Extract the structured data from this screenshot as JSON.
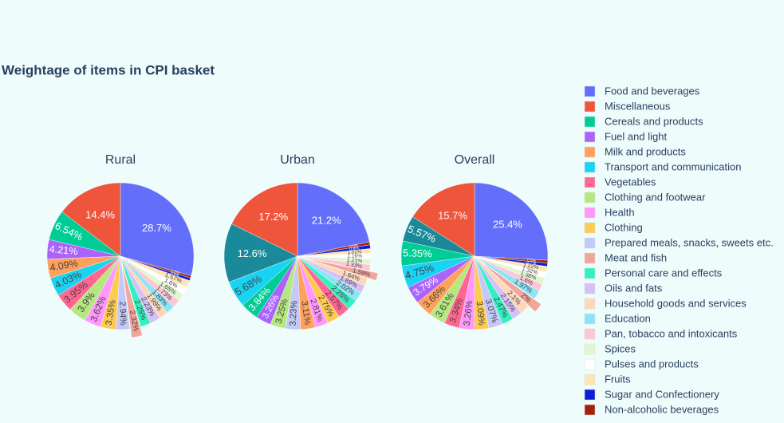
{
  "chart_data": {
    "type": "pie",
    "title": "Weightage of items in CPI basket",
    "pulled": "Meat and fish",
    "legend": [
      {
        "name": "Food and beverages",
        "color": "#636efa"
      },
      {
        "name": "Miscellaneous",
        "color": "#ef553b"
      },
      {
        "name": "Cereals and products",
        "color": "#00cc96"
      },
      {
        "name": "Fuel and light",
        "color": "#ab63fa"
      },
      {
        "name": "Milk and products",
        "color": "#ffa15a"
      },
      {
        "name": "Transport and communication",
        "color": "#19d3f3"
      },
      {
        "name": "Vegetables",
        "color": "#ff6692"
      },
      {
        "name": "Clothing and footwear",
        "color": "#b6e880"
      },
      {
        "name": "Health",
        "color": "#ff97ff"
      },
      {
        "name": "Clothing",
        "color": "#fecb52"
      },
      {
        "name": "Prepared meals, snacks, sweets etc.",
        "color": "#c3c9f8"
      },
      {
        "name": "Meat and fish",
        "color": "#f2a59a"
      },
      {
        "name": "Personal care and effects",
        "color": "#33f0c0"
      },
      {
        "name": "Oils and fats",
        "color": "#d6c0f8"
      },
      {
        "name": "Household goods and services",
        "color": "#fdd8b8"
      },
      {
        "name": "Education",
        "color": "#8ce4f6"
      },
      {
        "name": "Pan, tobacco and intoxicants",
        "color": "#fcc6d4"
      },
      {
        "name": "Spices",
        "color": "#e2f6cf"
      },
      {
        "name": "Pulses and products",
        "color": "#ffffff"
      },
      {
        "name": "Fruits",
        "color": "#fde6b4"
      },
      {
        "name": "Sugar and Confectionery",
        "color": "#0d1ed8"
      },
      {
        "name": "Non-alcoholic beverages",
        "color": "#a3230d"
      }
    ],
    "other_color": "#1a8a9a",
    "pies": [
      {
        "title": "Rural",
        "labels": [
          "Food and beverages",
          "Miscellaneous",
          "Cereals and products",
          "Fuel and light",
          "Milk and products",
          "Transport and communication",
          "Vegetables",
          "Clothing and footwear",
          "Health",
          "Clothing",
          "Prepared meals, snacks, sweets etc.",
          "Meat and fish",
          "Personal care and effects",
          "Oils and fats",
          "Household goods and services",
          "Education",
          "Pan, tobacco and intoxicants",
          "Spices",
          "Pulses and products",
          "Fruits",
          "Sugar and Confectionery",
          "Non-alcoholic beverages"
        ],
        "values": [
          28.7,
          14.4,
          6.54,
          4.21,
          4.09,
          4.03,
          3.95,
          3.9,
          3.62,
          3.35,
          2.94,
          2.32,
          2.25,
          2.23,
          1.99,
          1.83,
          1.73,
          1.65,
          1.6,
          1.57,
          0.6,
          0.5
        ],
        "value_labels": [
          "28.7%",
          "14.4%",
          "6.54%",
          "4.21%",
          "4.09%",
          "4.03%",
          "3.95%",
          "3.9%",
          "3.62%",
          "3.35%",
          "2.94%",
          "2.32%",
          "2.25%",
          "2.23%",
          "1.99%",
          "1.83%",
          "1.73%",
          "1.65%",
          "1.6%",
          "1.57%",
          "0.6%",
          "0.5%"
        ]
      },
      {
        "title": "Urban",
        "labels": [
          "Food and beverages",
          "Miscellaneous",
          null,
          "Transport and communication",
          "Cereals and products",
          "Fuel and light",
          "Clothing and footwear",
          "Prepared meals, snacks, sweets etc.",
          "Milk and products",
          "Health",
          "Clothing",
          "Vegetables",
          "Personal care and effects",
          "Education",
          "Oils and fats",
          "Household goods and services",
          "Meat and fish",
          "Pan, tobacco and intoxicants",
          "Spices",
          "Pulses and products",
          "Fruits",
          "Sugar and Confectionery",
          "Non-alcoholic beverages"
        ],
        "values": [
          21.2,
          17.2,
          12.6,
          5.68,
          3.84,
          3.26,
          3.25,
          3.23,
          3.11,
          2.81,
          2.75,
          2.57,
          2.26,
          2.02,
          1.69,
          1.64,
          1.59,
          1.33,
          1.21,
          1.16,
          1.02,
          0.8,
          0.6
        ],
        "value_labels": [
          "21.2%",
          "17.2%",
          "12.6%",
          "5.68%",
          "3.84%",
          "3.26%",
          "3.25%",
          "3.23%",
          "3.11%",
          "2.81%",
          "2.75%",
          "2.57%",
          "2.26%",
          "2.02%",
          "1.69%",
          "1.64%",
          "1.59%",
          "1.33%",
          "1.21%",
          "1.16%",
          "1.02%",
          "0.8%",
          "0.6%"
        ]
      },
      {
        "title": "Overall",
        "labels": [
          "Food and beverages",
          "Miscellaneous",
          null,
          "Cereals and products",
          "Transport and communication",
          "Fuel and light",
          "Milk and products",
          "Clothing and footwear",
          "Vegetables",
          "Health",
          "Clothing",
          "Prepared meals, snacks, sweets etc.",
          "Personal care and effects",
          "Oils and fats",
          "Household goods and services",
          "Meat and fish",
          "Education",
          "Pan, tobacco and intoxicants",
          "Spices",
          "Pulses and products",
          "Fruits",
          "Sugar and Confectionery",
          "Non-alcoholic beverages"
        ],
        "values": [
          25.4,
          15.7,
          5.57,
          5.35,
          4.75,
          3.79,
          3.66,
          3.61,
          3.34,
          3.26,
          3.09,
          3.07,
          2.47,
          2.15,
          2.1,
          2,
          1.97,
          1.6,
          1.38,
          1.32,
          1.22,
          0.7,
          0.6
        ],
        "value_labels": [
          "25.4%",
          "15.7%",
          "5.57%",
          "5.35%",
          "4.75%",
          "3.79%",
          "3.66%",
          "3.61%",
          "3.34%",
          "3.26%",
          "3.09%",
          "3.07%",
          "2.47%",
          "2.15%",
          "2.1%",
          "2%",
          "1.97%",
          "1.6%",
          "1.38%",
          "1.32%",
          "1.22%",
          "0.7%",
          "0.6%"
        ]
      }
    ]
  }
}
